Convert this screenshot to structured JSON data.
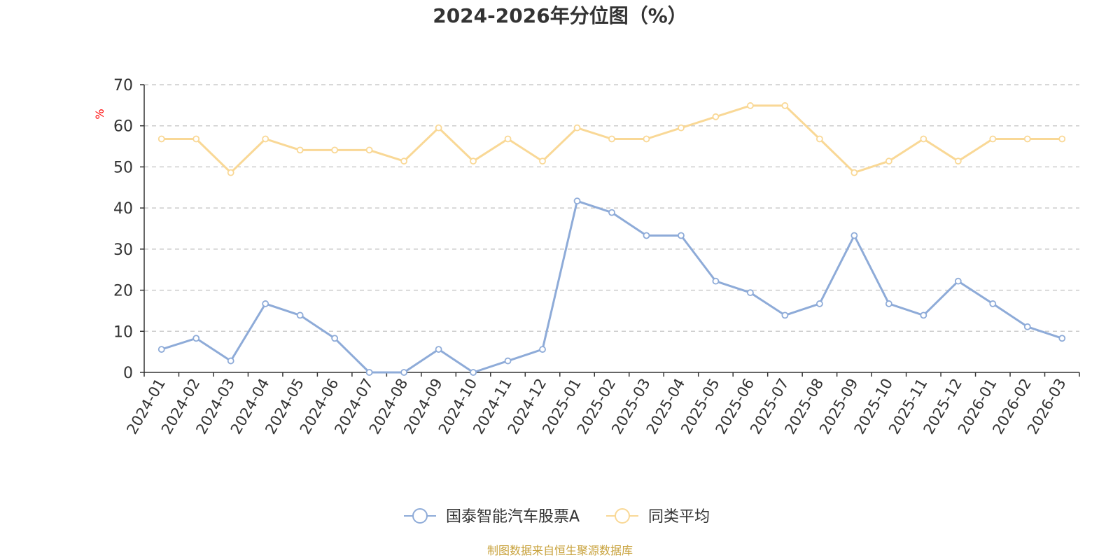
{
  "chart_data": {
    "type": "line",
    "title": "2024-2026年分位图（%）",
    "ylabel": "%",
    "xlabel": "",
    "ylim": [
      0,
      70
    ],
    "yticks": [
      0,
      10,
      20,
      30,
      40,
      50,
      60,
      70
    ],
    "grid": true,
    "legend_position": "bottom-center",
    "categories": [
      "2024-01",
      "2024-02",
      "2024-03",
      "2024-04",
      "2024-05",
      "2024-06",
      "2024-07",
      "2024-08",
      "2024-09",
      "2024-10",
      "2024-11",
      "2024-12",
      "2025-01",
      "2025-02",
      "2025-03",
      "2025-04",
      "2025-05",
      "2025-06",
      "2025-07",
      "2025-08",
      "2025-09",
      "2025-10",
      "2025-11",
      "2025-12",
      "2026-01",
      "2026-02",
      "2026-03"
    ],
    "series": [
      {
        "name": "国泰智能汽车股票A",
        "color": "#8eabd8",
        "values": [
          5.6,
          8.3,
          2.8,
          16.7,
          13.9,
          8.3,
          0,
          0,
          5.6,
          0,
          2.8,
          5.6,
          41.7,
          38.9,
          33.3,
          33.3,
          22.2,
          19.4,
          13.9,
          16.7,
          33.3,
          16.7,
          13.9,
          22.2,
          16.7,
          11.1,
          8.3
        ]
      },
      {
        "name": "同类平均",
        "color": "#f9d896",
        "values": [
          56.8,
          56.8,
          48.6,
          56.8,
          54.1,
          54.1,
          54.1,
          51.4,
          59.5,
          51.4,
          56.8,
          51.4,
          59.5,
          56.8,
          56.8,
          59.5,
          62.2,
          64.9,
          64.9,
          56.8,
          48.6,
          51.4,
          56.8,
          51.4,
          56.8,
          56.8,
          56.8
        ]
      }
    ]
  },
  "footer": {
    "source": "制图数据来自恒生聚源数据库"
  },
  "colors": {
    "axis": "#333333",
    "grid": "#cccccc",
    "ylabel": "#ff0000",
    "source": "#c8a23c"
  }
}
